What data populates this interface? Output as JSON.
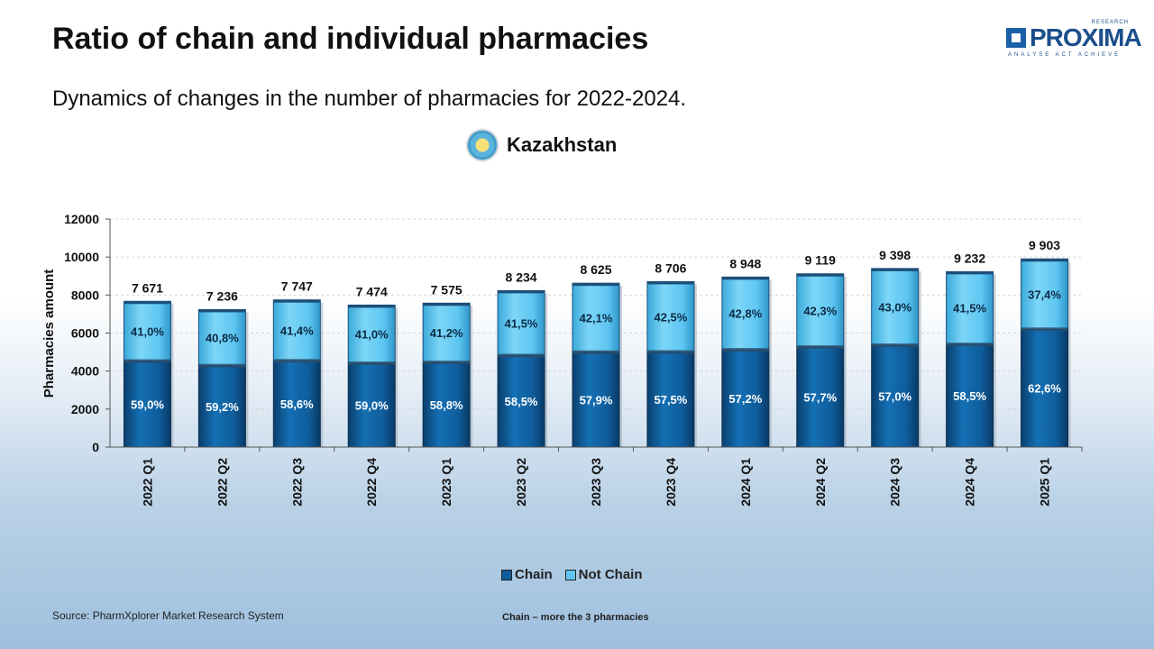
{
  "title": "Ratio of chain and individual pharmacies",
  "subtitle": "Dynamics of changes in the number of pharmacies for 2022-2024.",
  "country": "Kazakhstan",
  "logo": {
    "brand": "PROXIMA",
    "top_text": "RESEARCH",
    "tagline": "ANALYSE ACT ACHIEVE"
  },
  "source": "Source: PharmXplorer Market Research System",
  "note": "Chain – more the  3 pharmacies",
  "colors": {
    "chain": "#0f5c9a",
    "not_chain": "#5ec6f2"
  },
  "chart_data": {
    "type": "bar",
    "stacked": true,
    "ylabel": "Pharmacies amount",
    "ylim": [
      0,
      12000
    ],
    "yticks": [
      "0",
      "2000",
      "4000",
      "6000",
      "8000",
      "10000",
      "12000"
    ],
    "grid": true,
    "legend_position": "bottom",
    "categories": [
      "2022 Q1",
      "2022 Q2",
      "2022 Q3",
      "2022 Q4",
      "2023 Q1",
      "2023 Q2",
      "2023 Q3",
      "2023 Q4",
      "2024 Q1",
      "2024 Q2",
      "2024 Q3",
      "2024 Q4",
      "2025 Q1"
    ],
    "totals": [
      7671,
      7236,
      7747,
      7474,
      7575,
      8234,
      8625,
      8706,
      8948,
      9119,
      9398,
      9232,
      9903
    ],
    "total_labels": [
      "7 671",
      "7 236",
      "7 747",
      "7 474",
      "7 575",
      "8 234",
      "8 625",
      "8 706",
      "8 948",
      "9 119",
      "9 398",
      "9 232",
      "9 903"
    ],
    "series": [
      {
        "name": "Chain",
        "percent": [
          59.0,
          59.2,
          58.6,
          59.0,
          58.8,
          58.5,
          57.9,
          57.5,
          57.2,
          57.7,
          57.0,
          58.5,
          62.6
        ],
        "labels": [
          "59,0%",
          "59,2%",
          "58,6%",
          "59,0%",
          "58,8%",
          "58,5%",
          "57,9%",
          "57,5%",
          "57,2%",
          "57,7%",
          "57,0%",
          "58,5%",
          "62,6%"
        ]
      },
      {
        "name": "Not Chain",
        "percent": [
          41.0,
          40.8,
          41.4,
          41.0,
          41.2,
          41.5,
          42.1,
          42.5,
          42.8,
          42.3,
          43.0,
          41.5,
          37.4
        ],
        "labels": [
          "41,0%",
          "40,8%",
          "41,4%",
          "41,0%",
          "41,2%",
          "41,5%",
          "42,1%",
          "42,5%",
          "42,8%",
          "42,3%",
          "43,0%",
          "41,5%",
          "37,4%"
        ]
      }
    ]
  }
}
